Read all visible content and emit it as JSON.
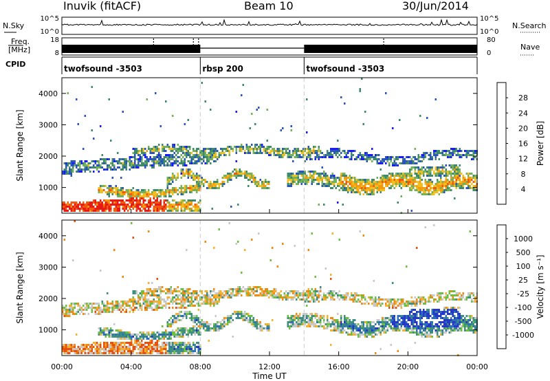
{
  "header": {
    "station": "Inuvik (fitACF)",
    "beam": "Beam 10",
    "date": "30/Jun/2014"
  },
  "nsky_panel": {
    "left_label": "N.Sky",
    "right_label": "N.Search",
    "left_ticks": [
      "10^5",
      "10^0"
    ],
    "right_ticks": [
      "10^5",
      "10^0"
    ]
  },
  "freq_panel": {
    "left_label_1": "Freq.",
    "left_label_2": "[MHz]",
    "right_label": "Nave",
    "left_ticks": [
      "18",
      "8"
    ],
    "right_ticks": [
      "80",
      "0"
    ]
  },
  "cpid_panel": {
    "label": "CPID",
    "segments": [
      {
        "name": "twofsound -3503",
        "start_hour": 0
      },
      {
        "name": "rbsp 200",
        "start_hour": 8
      },
      {
        "name": "twofsound -3503",
        "start_hour": 14
      }
    ]
  },
  "chart_data": [
    {
      "type": "heatmap",
      "quantity": "Power",
      "xlabel": "Time UT",
      "ylabel": "Slant Range [km]",
      "xlim": [
        0,
        24
      ],
      "ylim": [
        180,
        4500
      ],
      "x_ticks": [
        "00:00",
        "04:00",
        "08:00",
        "12:00",
        "16:00",
        "20:00",
        "00:00"
      ],
      "y_ticks": [
        "1000",
        "2000",
        "3000",
        "4000"
      ],
      "y_tick_values": [
        1000,
        2000,
        3000,
        4000
      ],
      "colorbar": {
        "label": "Power [dB]",
        "ticks": [
          "4",
          "8",
          "12",
          "16",
          "20",
          "24",
          "28"
        ],
        "colors": [
          "#1a1aff",
          "#2a55c0",
          "#3f8a6a",
          "#73b15a",
          "#f0c020",
          "#f39a10",
          "#ef5a10",
          "#e81a14"
        ]
      }
    },
    {
      "type": "heatmap",
      "quantity": "Velocity",
      "xlabel": "Time UT",
      "ylabel": "Slant Range [km]",
      "xlim": [
        0,
        24
      ],
      "ylim": [
        180,
        4500
      ],
      "x_ticks": [
        "00:00",
        "04:00",
        "08:00",
        "12:00",
        "16:00",
        "20:00",
        "00:00"
      ],
      "y_ticks": [
        "1000",
        "2000",
        "3000",
        "4000"
      ],
      "y_tick_values": [
        1000,
        2000,
        3000,
        4000
      ],
      "colorbar": {
        "label": "Velocity [m s⁻¹]",
        "ticks": [
          "1000",
          "500",
          "100",
          "25",
          "-25",
          "-100",
          "-500",
          "-1000"
        ],
        "colors": [
          "#2638c8",
          "#2c70b8",
          "#3e8f80",
          "#6cc040",
          "#c8c8c8",
          "#f5b030",
          "#f08a10",
          "#e85010",
          "#e01818"
        ]
      }
    }
  ]
}
